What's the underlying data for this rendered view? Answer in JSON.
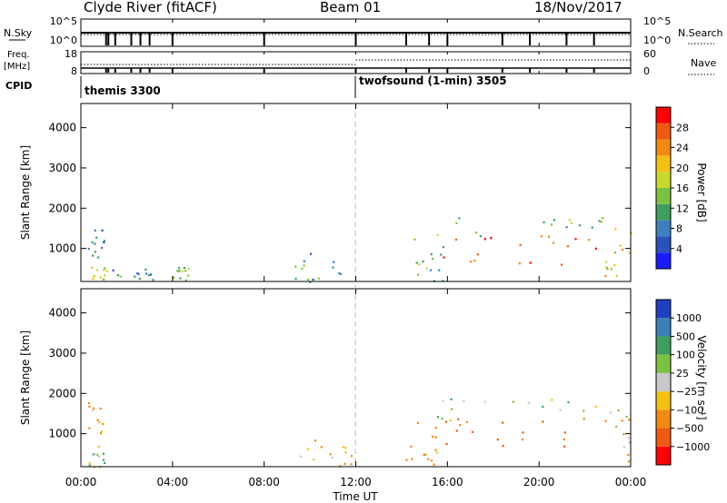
{
  "header": {
    "station": "Clyde River (fitACF)",
    "beam": "Beam 01",
    "date": "18/Nov/2017"
  },
  "top_panels": {
    "nsky_label": "N.Sky",
    "nsky_ticks": [
      "10^5",
      "10^0"
    ],
    "nsearch_label": "N.Search",
    "nsearch_ticks": [
      "10^5",
      "10^0"
    ],
    "freq_label_1": "Freq.",
    "freq_label_2": "[MHz]",
    "freq_ticks": [
      "18",
      "8"
    ],
    "nave_label": "Nave",
    "nave_ticks": [
      "60",
      "0"
    ],
    "cpid_label": "CPID",
    "cpid_modes": [
      {
        "name": "themis 3300",
        "start_hour": 0,
        "end_hour": 12
      },
      {
        "name": "twofsound (1-min) 3505",
        "start_hour": 12,
        "end_hour": 24
      }
    ]
  },
  "x_axis": {
    "label": "Time UT",
    "ticks": [
      "00:00",
      "04:00",
      "08:00",
      "12:00",
      "16:00",
      "20:00",
      "00:00"
    ]
  },
  "chart_data": [
    {
      "type": "heatmap",
      "title": "Power",
      "ylabel": "Slant Range [km]",
      "xlabel": "Time UT",
      "xlim_hours": [
        0,
        24
      ],
      "ylim": [
        180,
        4600
      ],
      "yticks": [
        "1000",
        "2000",
        "3000",
        "4000"
      ],
      "colorbar": {
        "label": "Power [dB]",
        "ticks": [
          "4",
          "8",
          "12",
          "16",
          "20",
          "24",
          "28"
        ],
        "range": [
          0,
          32
        ],
        "colors": [
          "#1a1aff",
          "#2a52b8",
          "#3d7fbf",
          "#3f9e5c",
          "#7cc242",
          "#c8d830",
          "#f5c014",
          "#f08a14",
          "#ee5a14",
          "#ff0000"
        ]
      },
      "regions": [
        {
          "t": [
            0.3,
            1.1
          ],
          "r": [
            180,
            600
          ],
          "p": 18
        },
        {
          "t": [
            0.3,
            1.0
          ],
          "r": [
            700,
            1800
          ],
          "p": 9
        },
        {
          "t": [
            1.2,
            3.2
          ],
          "r": [
            180,
            500
          ],
          "p": 10
        },
        {
          "t": [
            4.0,
            4.8
          ],
          "r": [
            180,
            600
          ],
          "p": 14
        },
        {
          "t": [
            9.0,
            11.8
          ],
          "r": [
            180,
            900
          ],
          "p": 9
        },
        {
          "t": [
            14.0,
            15.8
          ],
          "r": [
            180,
            1300
          ],
          "p": 12
        },
        {
          "t": [
            15.5,
            22.8
          ],
          "r": [
            600,
            1400
          ],
          "p": 27
        },
        {
          "t": [
            15.5,
            22.8
          ],
          "r": [
            1300,
            1900
          ],
          "p": 13
        },
        {
          "t": [
            22.8,
            24
          ],
          "r": [
            300,
            1700
          ],
          "p": 19
        }
      ]
    },
    {
      "type": "heatmap",
      "title": "Velocity",
      "ylabel": "Slant Range [km]",
      "xlabel": "Time UT",
      "xlim_hours": [
        0,
        24
      ],
      "ylim": [
        180,
        4600
      ],
      "yticks": [
        "1000",
        "2000",
        "3000",
        "4000"
      ],
      "colorbar": {
        "label": "Velocity [m s⁻¹]",
        "ticks": [
          "1000",
          "500",
          "100",
          "25",
          "−25",
          "−100",
          "−500",
          "−1000"
        ],
        "colors": [
          "#2040c0",
          "#3a7fb8",
          "#3f9e5c",
          "#7cc242",
          "#c8c8c8",
          "#f5c014",
          "#f08a14",
          "#ee5a14",
          "#ff0000"
        ]
      },
      "regions": [
        {
          "t": [
            0.3,
            1.1
          ],
          "r": [
            180,
            600
          ],
          "v": 100
        },
        {
          "t": [
            0.3,
            1.0
          ],
          "r": [
            700,
            1800
          ],
          "v": -100
        },
        {
          "t": [
            9.0,
            11.8
          ],
          "r": [
            180,
            900
          ],
          "v": -100
        },
        {
          "t": [
            14.0,
            15.8
          ],
          "r": [
            180,
            1300
          ],
          "v": -200
        },
        {
          "t": [
            15.5,
            22.8
          ],
          "r": [
            600,
            1400
          ],
          "v": -600
        },
        {
          "t": [
            15.5,
            22.8
          ],
          "r": [
            1300,
            1900
          ],
          "v": 25
        },
        {
          "t": [
            22.8,
            24
          ],
          "r": [
            300,
            1700
          ],
          "v": -100
        }
      ]
    }
  ]
}
